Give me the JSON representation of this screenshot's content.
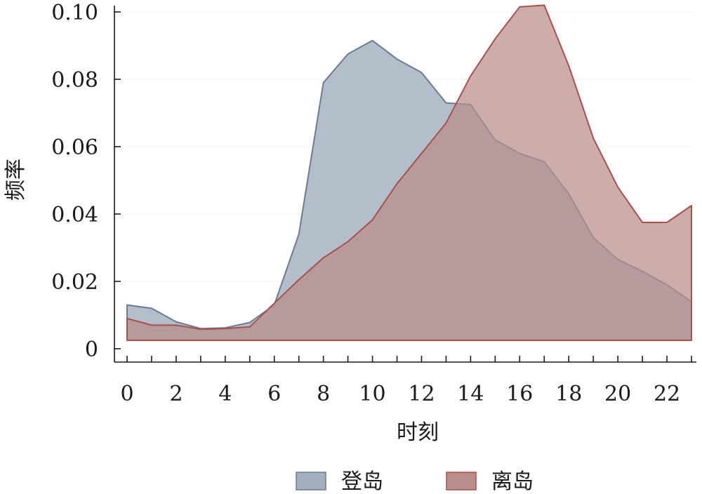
{
  "chart_data": {
    "type": "area",
    "xlabel": "时刻",
    "ylabel": "频率",
    "xlim": [
      0,
      23
    ],
    "ylim": [
      0,
      0.1
    ],
    "baseline": 0.0025,
    "xticks": [
      0,
      2,
      4,
      6,
      8,
      10,
      12,
      14,
      16,
      18,
      20,
      22
    ],
    "xtick_labels": [
      "0",
      "2",
      "4",
      "6",
      "8",
      "10",
      "12",
      "14",
      "16",
      "18",
      "20",
      "22"
    ],
    "yticks": [
      0,
      0.02,
      0.04,
      0.06,
      0.08,
      0.1
    ],
    "ytick_labels": [
      "0",
      "0.02",
      "0.04",
      "0.06",
      "0.08",
      "0.10"
    ],
    "legend_position": "bottom",
    "x": [
      0,
      1,
      2,
      3,
      4,
      5,
      6,
      7,
      8,
      9,
      10,
      11,
      12,
      13,
      14,
      15,
      16,
      17,
      18,
      19,
      20,
      21,
      22,
      23
    ],
    "series": [
      {
        "name": "登岛",
        "fill": "#a3b0be",
        "stroke": "#6b7c91",
        "values": [
          0.013,
          0.012,
          0.008,
          0.006,
          0.0062,
          0.0078,
          0.013,
          0.034,
          0.079,
          0.0875,
          0.0915,
          0.086,
          0.082,
          0.073,
          0.0725,
          0.062,
          0.058,
          0.0555,
          0.046,
          0.033,
          0.0265,
          0.023,
          0.019,
          0.014
        ]
      },
      {
        "name": "离岛",
        "fill": "#b98d8b",
        "stroke": "#a9504c",
        "values": [
          0.009,
          0.007,
          0.007,
          0.0058,
          0.006,
          0.0065,
          0.0135,
          0.0205,
          0.027,
          0.0318,
          0.0383,
          0.049,
          0.058,
          0.067,
          0.081,
          0.092,
          0.1015,
          0.102,
          0.084,
          0.0625,
          0.048,
          0.0375,
          0.0375,
          0.0425
        ]
      }
    ]
  }
}
